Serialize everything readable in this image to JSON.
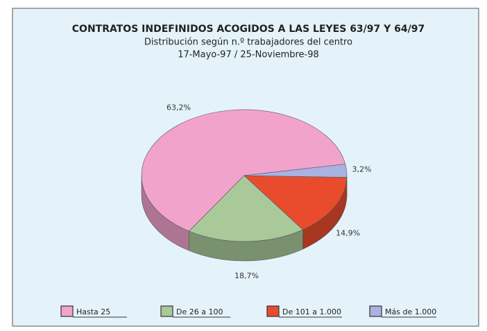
{
  "chart_data": {
    "type": "pie",
    "title": "CONTRATOS INDEFINIDOS ACOGIDOS A LAS LEYES 63/97 Y 64/97",
    "subtitle": [
      "Distribución según n.º trabajadores del centro",
      "17-Mayo-97 / 25-Noviembre-98"
    ],
    "categories": [
      "Hasta 25",
      "De 26 a 100",
      "De 101 a 1.000",
      "Más de 1.000"
    ],
    "values": [
      63.2,
      18.7,
      14.9,
      3.2
    ],
    "value_labels": [
      "63,2%",
      "18,7%",
      "14,9%",
      "3,2%"
    ],
    "colors": [
      "#f2a3cb",
      "#a9c99b",
      "#e84c2c",
      "#a9b2e3"
    ],
    "legend": "bottom"
  }
}
